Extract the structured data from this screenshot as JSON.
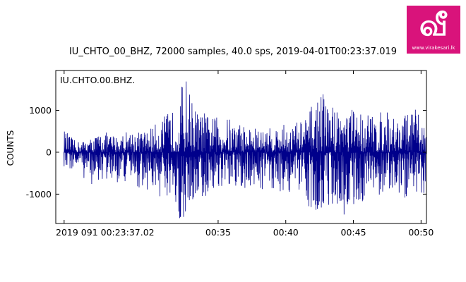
{
  "plot": {
    "title": "IU_CHTO_00_BHZ, 72000 samples, 40.0 sps, 2019-04-01T00:23:37.019",
    "trace_label": "IU.CHTO.00.BHZ."
  },
  "logo": {
    "url_text": "www.virakesari.lk",
    "brand_color": "#d9137b"
  },
  "colors": {
    "trace": "#00008b",
    "axes": "#000000",
    "background": "#ffffff"
  },
  "chart_data": {
    "type": "line",
    "ylabel": "COUNTS",
    "ylim": [
      -1700,
      1950
    ],
    "xlim": [
      0,
      27.4
    ],
    "x_unit": "minutes after 00:23:00",
    "y_ticks": [
      {
        "value": -1000,
        "label": "-1000"
      },
      {
        "value": 0,
        "label": "0"
      },
      {
        "value": 1000,
        "label": "1000"
      }
    ],
    "x_ticks": [
      {
        "value": 0.617,
        "label": "2019 091 00:23:37.02"
      },
      {
        "value": 12,
        "label": "00:35"
      },
      {
        "value": 17,
        "label": "00:40"
      },
      {
        "value": 22,
        "label": "00:45"
      },
      {
        "value": 27,
        "label": "00:50"
      }
    ],
    "series": [
      {
        "x": [
          0.6,
          1.5,
          2.5,
          3.5,
          4.5,
          5.5,
          6.5,
          7.5,
          8.3,
          9.0,
          9.5,
          10.0,
          10.5,
          11.0,
          11.5,
          12.5,
          13.5,
          14.5,
          15.5,
          16.5,
          17.5,
          18.5,
          19.5,
          20.5,
          21.5,
          22.5,
          23.5,
          24.5,
          25.5,
          26.5,
          27.4
        ],
        "high": [
          550,
          250,
          320,
          500,
          400,
          550,
          500,
          700,
          950,
          1050,
          1950,
          1350,
          950,
          950,
          850,
          850,
          750,
          600,
          550,
          650,
          700,
          850,
          1500,
          1150,
          1050,
          1050,
          900,
          1000,
          850,
          1050,
          650
        ],
        "low": [
          -450,
          -400,
          -800,
          -700,
          -750,
          -750,
          -900,
          -1000,
          -1500,
          -1650,
          -1650,
          -1400,
          -1000,
          -1250,
          -900,
          -950,
          -1000,
          -850,
          -900,
          -950,
          -1000,
          -1250,
          -1450,
          -1250,
          -1550,
          -1200,
          -1100,
          -950,
          -1200,
          -1050,
          -950
        ]
      }
    ]
  }
}
